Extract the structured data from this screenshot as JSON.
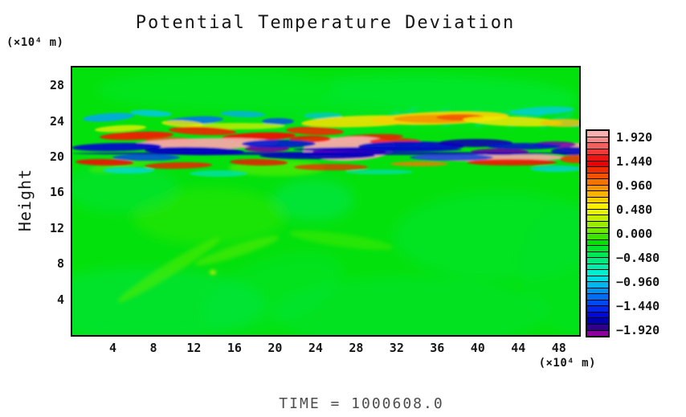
{
  "chart_data": {
    "type": "heatmap",
    "title": "Potential Temperature Deviation",
    "time_label": "TIME  =  1000608.0",
    "y_axis": {
      "label": "Height",
      "unit": "(×10⁴ m)",
      "ticks": [
        28,
        24,
        20,
        16,
        12,
        8,
        4
      ],
      "range": [
        0,
        30
      ],
      "grid": false
    },
    "x_axis": {
      "label": "",
      "unit": "(×10⁴ m)",
      "ticks": [
        4,
        8,
        12,
        16,
        20,
        24,
        28,
        32,
        36,
        40,
        44,
        48
      ],
      "range": [
        0,
        50
      ],
      "grid": false
    },
    "colorbar": {
      "position": "right",
      "labels": [
        "1.920",
        "1.440",
        "0.960",
        "0.480",
        "0.000",
        "−0.480",
        "−0.960",
        "−1.440",
        "−1.920"
      ],
      "values": [
        1.92,
        1.44,
        0.96,
        0.48,
        0.0,
        -0.48,
        -0.96,
        -1.44,
        -1.92
      ],
      "segment_step": 0.12,
      "colors_top_to_bottom": [
        "#F7AFAF",
        "#F58A8A",
        "#F26060",
        "#EF3A3A",
        "#ED1414",
        "#EC0000",
        "#F02D00",
        "#F35200",
        "#F57300",
        "#F79300",
        "#F9B200",
        "#FBD000",
        "#FDEE00",
        "#E6F300",
        "#C3F000",
        "#9BED00",
        "#6FE900",
        "#3BE500",
        "#00E100",
        "#00E42B",
        "#00E755",
        "#00EA80",
        "#00EDAA",
        "#00EFD2",
        "#00DBE5",
        "#00B7EC",
        "#0092F1",
        "#006DF3",
        "#0049F0",
        "#0026E8",
        "#0009DB",
        "#0000AC",
        "#30008C",
        "#8E009E"
      ]
    },
    "field_description": "Near-zero (bright green) potential temperature deviation everywhere except a turbulent horizontal mixing band at heights ~19.5–22.5 ×10⁴ m spanning all x, containing strong positive streaks (red/orange/yellow up to ~+1.9, pale-pink saturated cores) interleaved with strong negative streaks (navy/dark blue to purple, down to ~−1.9) and cyan fringes; faint diagonal gravity-wave ripples above the band on the right half and subtle green/teal blobs elsewhere.",
    "field": {
      "base_color": "#03E10C",
      "layers": {
        "soft": [
          [
            430,
            40,
            200,
            30,
            0,
            "#00E72B",
            1
          ],
          [
            180,
            28,
            150,
            24,
            0,
            "#00E51C",
            0.9
          ],
          [
            310,
            65,
            120,
            22,
            0,
            "#00E41A",
            0.8
          ],
          [
            90,
            295,
            150,
            45,
            0,
            "#00E545",
            0.55
          ],
          [
            300,
            165,
            50,
            26,
            0,
            "#00E85C",
            0.5
          ],
          [
            530,
            210,
            130,
            55,
            0,
            "#00E43A",
            0.45
          ],
          [
            170,
            185,
            95,
            35,
            0,
            "#2FE800",
            0.5
          ],
          [
            420,
            305,
            170,
            45,
            0,
            "#00E43C",
            0.4
          ],
          [
            620,
            250,
            60,
            80,
            0,
            "#00E430",
            0.4
          ],
          [
            60,
            150,
            70,
            30,
            0,
            "#00E448",
            0.45
          ],
          [
            250,
            280,
            90,
            40,
            -20,
            "#00E440",
            0.35
          ]
        ],
        "mid": [
          [
            120,
            252,
            75,
            8,
            -32,
            "#55EC00",
            0.55
          ],
          [
            205,
            228,
            55,
            7,
            -18,
            "#63ED00",
            0.5
          ],
          [
            335,
            215,
            65,
            8,
            8,
            "#4FEB00",
            0.45
          ],
          [
            255,
            125,
            60,
            10,
            0,
            "#63EE00",
            0.6
          ],
          [
            65,
            120,
            45,
            8,
            -10,
            "#59EC00",
            0.5
          ],
          [
            175,
            255,
            4,
            2.5,
            0,
            "#EFF000",
            0.9
          ],
          [
            395,
            62,
            16,
            2.5,
            -28,
            "#00DFA6",
            0.8
          ],
          [
            415,
            58,
            16,
            2.5,
            -28,
            "#00DC9E",
            0.7
          ],
          [
            435,
            64,
            16,
            2.5,
            -28,
            "#00DFA6",
            0.75
          ],
          [
            455,
            59,
            16,
            2.5,
            -28,
            "#00DCA2",
            0.7
          ],
          [
            475,
            65,
            16,
            2.5,
            -28,
            "#00DFA8",
            0.7
          ],
          [
            495,
            60,
            16,
            2.5,
            -28,
            "#00DCA0",
            0.65
          ],
          [
            515,
            66,
            16,
            2.5,
            -28,
            "#00DFA4",
            0.7
          ],
          [
            535,
            61,
            16,
            2.5,
            -28,
            "#00DCA0",
            0.65
          ],
          [
            555,
            67,
            15,
            2.5,
            -28,
            "#00DFA8",
            0.7
          ],
          [
            575,
            62,
            15,
            2.5,
            -28,
            "#00DCA2",
            0.65
          ],
          [
            595,
            68,
            15,
            2.5,
            -28,
            "#00DFA6",
            0.7
          ],
          [
            612,
            63,
            14,
            2.5,
            -28,
            "#00DCA4",
            0.65
          ]
        ],
        "band": [
          [
            45,
            62,
            32,
            5,
            -4,
            "#00A9E9",
            0.9
          ],
          [
            98,
            57,
            26,
            4,
            3,
            "#00C9E9",
            0.85
          ],
          [
            152,
            66,
            36,
            5,
            -3,
            "#0077E9",
            0.9
          ],
          [
            212,
            58,
            28,
            4,
            2,
            "#00B1E9",
            0.8
          ],
          [
            256,
            67,
            20,
            4,
            0,
            "#004FE9",
            0.85
          ],
          [
            312,
            60,
            24,
            4,
            0,
            "#00C1E9",
            0.65
          ],
          [
            585,
            54,
            40,
            5,
            -3,
            "#00CDE9",
            0.75
          ],
          [
            622,
            70,
            24,
            4,
            0,
            "#00BDE9",
            0.75
          ],
          [
            60,
            76,
            32,
            4,
            -3,
            "#E9F000",
            0.8
          ],
          [
            137,
            70,
            26,
            4,
            3,
            "#F0E800",
            0.8
          ],
          [
            205,
            73,
            60,
            4,
            0,
            "#E8F000",
            0.7
          ],
          [
            360,
            67,
            75,
            7,
            -2,
            "#F0E200",
            0.9
          ],
          [
            458,
            63,
            85,
            8,
            -2,
            "#F2D200",
            0.95
          ],
          [
            452,
            64,
            52,
            5,
            0,
            "#F29300",
            0.9
          ],
          [
            483,
            62,
            30,
            4,
            0,
            "#F25200",
            0.85
          ],
          [
            548,
            67,
            62,
            6,
            2,
            "#F1E800",
            0.85
          ],
          [
            612,
            69,
            30,
            5,
            0,
            "#F2C300",
            0.8
          ],
          [
            80,
            85,
            46,
            5,
            -2,
            "#F11A00",
            0.95
          ],
          [
            162,
            79,
            42,
            5,
            2,
            "#F12200",
            0.9
          ],
          [
            232,
            86,
            46,
            5,
            -2,
            "#F11200",
            0.95
          ],
          [
            302,
            79,
            36,
            5,
            2,
            "#F12A00",
            0.9
          ],
          [
            372,
            87,
            40,
            4,
            -2,
            "#F11A00",
            0.85
          ],
          [
            122,
            91,
            32,
            4,
            0,
            "#F24A00",
            0.8
          ],
          [
            325,
            91,
            40,
            4,
            0,
            "#C6F000",
            0.65
          ],
          [
            165,
            95,
            92,
            7,
            -1,
            "#F6A6A6",
            0.95
          ],
          [
            345,
            101,
            58,
            15,
            -2,
            "#F6AAAA",
            0.95
          ],
          [
            520,
            112,
            95,
            5,
            0,
            "#F6A6A6",
            0.9
          ],
          [
            627,
            100,
            22,
            6,
            0,
            "#F6A2A2",
            0.85
          ],
          [
            296,
            89,
            26,
            4,
            0,
            "#F11200",
            0.85
          ],
          [
            402,
            92,
            32,
            4,
            0,
            "#F12200",
            0.85
          ],
          [
            345,
            105,
            46,
            5,
            0,
            "#8A00AB",
            0.95
          ],
          [
            242,
            101,
            28,
            4,
            0,
            "#7A00A3",
            0.9
          ],
          [
            532,
            105,
            36,
            4,
            0,
            "#6C00A3",
            0.9
          ],
          [
            601,
            96,
            26,
            4,
            0,
            "#7A00AB",
            0.85
          ],
          [
            55,
            99,
            56,
            5,
            -1,
            "#000AC9",
            0.95
          ],
          [
            152,
            104,
            62,
            5,
            1,
            "#0000C1",
            0.95
          ],
          [
            257,
            95,
            46,
            5,
            0,
            "#0019D1",
            0.9
          ],
          [
            305,
            110,
            72,
            4,
            0,
            "#0000B9",
            0.9
          ],
          [
            380,
            102,
            105,
            3,
            0,
            "#0000C5",
            0.8
          ],
          [
            422,
            98,
            66,
            6,
            0,
            "#0011C9",
            0.95
          ],
          [
            502,
            94,
            46,
            5,
            0,
            "#0F00B1",
            0.9
          ],
          [
            562,
            98,
            46,
            4,
            0,
            "#0019C9",
            0.9
          ],
          [
            622,
            104,
            26,
            5,
            0,
            "#000AC1",
            0.9
          ],
          [
            92,
            112,
            42,
            4,
            0,
            "#0049E9",
            0.85
          ],
          [
            472,
            112,
            52,
            4,
            0,
            "#0039E1",
            0.8
          ],
          [
            315,
            107,
            315,
            2,
            0,
            "#0000C1",
            0.8
          ],
          [
            40,
            118,
            36,
            4,
            1,
            "#F11200",
            0.9
          ],
          [
            132,
            122,
            42,
            4,
            -1,
            "#F12200",
            0.85
          ],
          [
            232,
            118,
            36,
            4,
            1,
            "#E91A00",
            0.85
          ],
          [
            322,
            124,
            46,
            4,
            0,
            "#F12A00",
            0.8
          ],
          [
            432,
            120,
            36,
            3,
            0,
            "#F27B00",
            0.8
          ],
          [
            547,
            118,
            56,
            4,
            0,
            "#F11A00",
            0.9
          ],
          [
            627,
            114,
            20,
            5,
            0,
            "#F23200",
            0.85
          ],
          [
            70,
            128,
            32,
            4,
            0,
            "#00D9D9",
            0.8
          ],
          [
            182,
            132,
            36,
            4,
            0,
            "#00E1C1",
            0.7
          ],
          [
            382,
            130,
            42,
            3,
            0,
            "#00DDCD",
            0.65
          ],
          [
            602,
            126,
            32,
            4,
            0,
            "#00D1E1",
            0.75
          ]
        ]
      }
    }
  }
}
